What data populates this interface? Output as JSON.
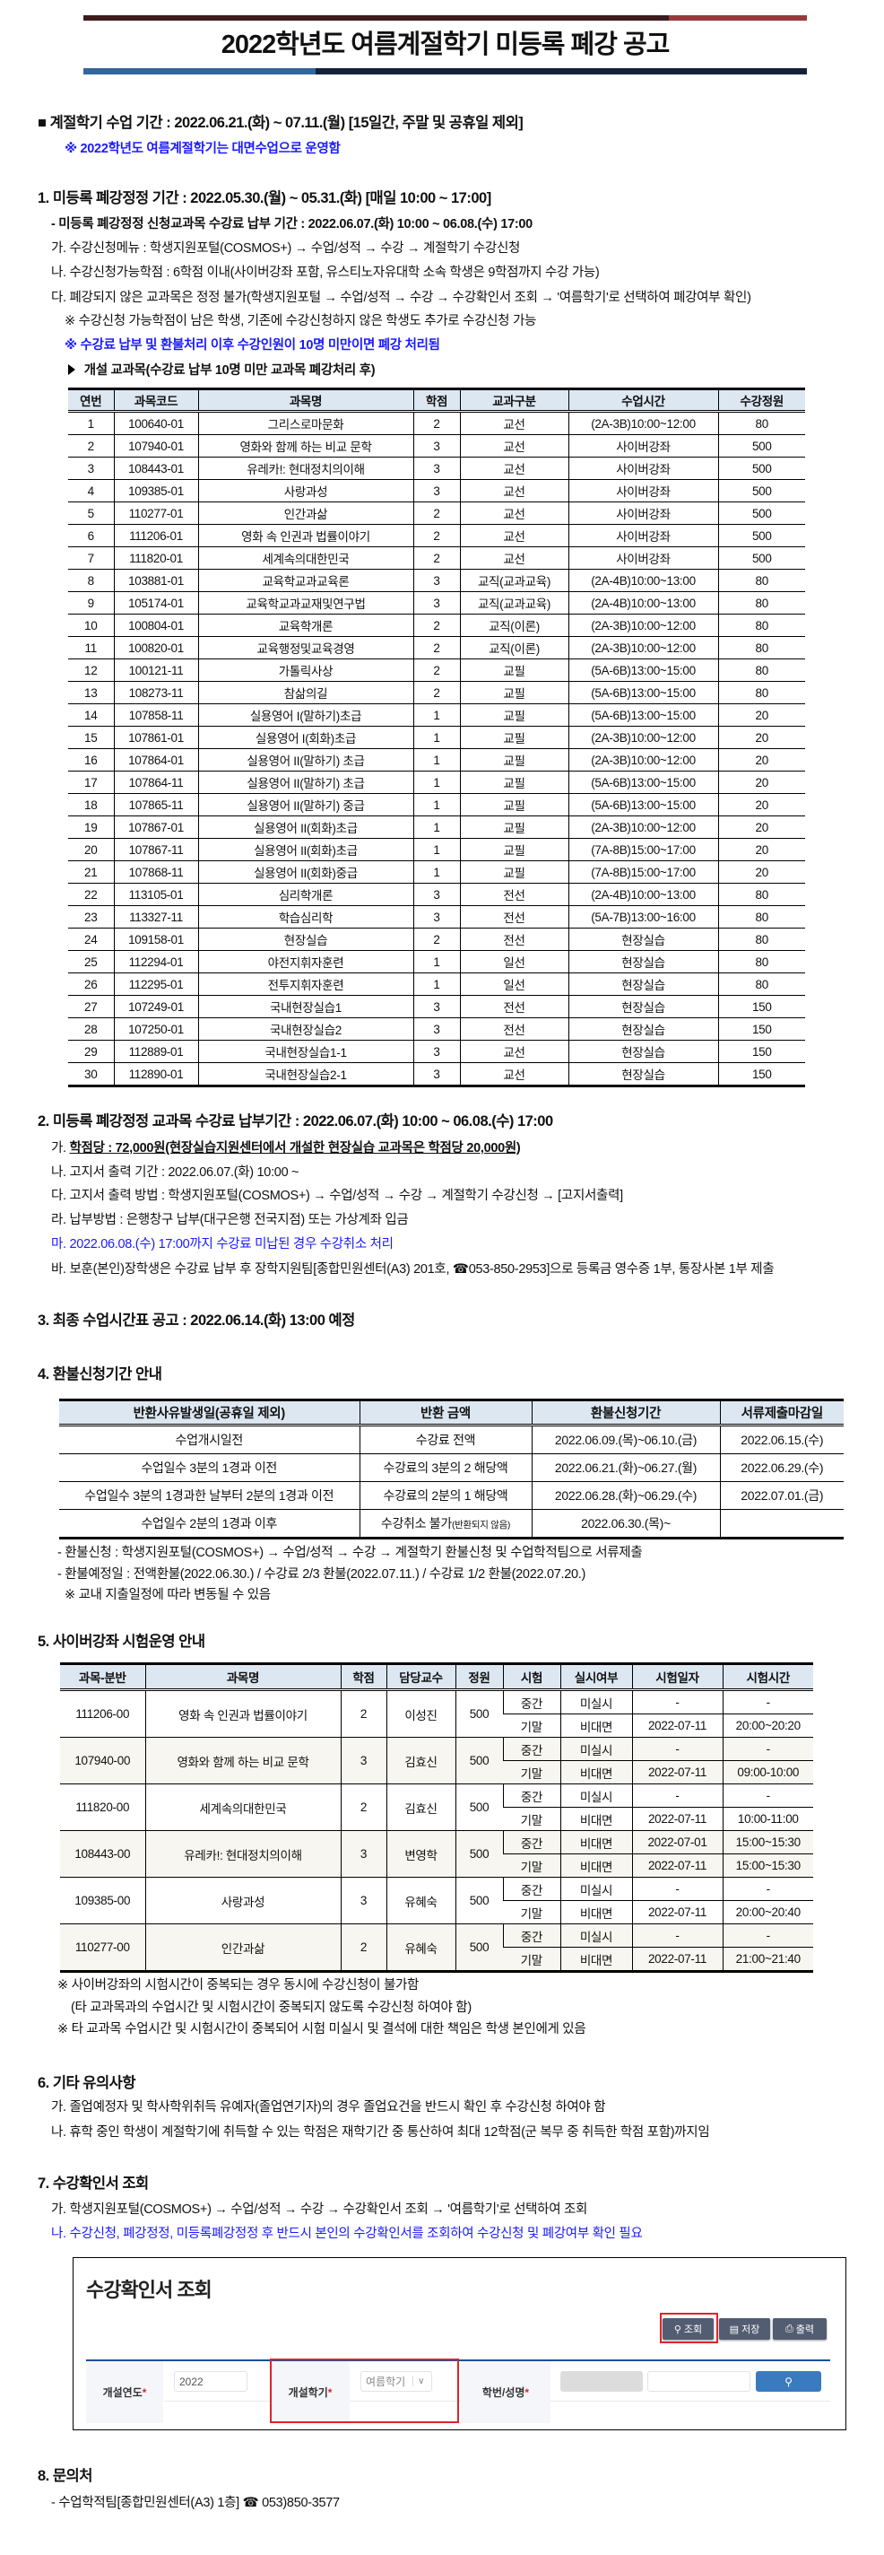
{
  "title": "2022학년도 여름계절학기 미등록 폐강 공고",
  "colors": {
    "bar_top_dark": "#3d1a1c",
    "bar_top_red": "#963a3a",
    "bar_bottom_blue": "#336699",
    "bar_bottom_navy": "#14213a",
    "accent_blue_text": "#1a1aff",
    "table_header": "#dde7f2"
  },
  "period": {
    "bullet": "■",
    "text": "계절학기 수업 기간 : 2022.06.21.(화) ~ 07.11.(월) [15일간, 주말 및 공휴일 제외]",
    "note": "※ 2022학년도 여름계절학기는 대면수업으로 운영함"
  },
  "s1": {
    "heading": "1. 미등록 폐강정정 기간 : 2022.05.30.(월) ~ 05.31.(화) [매일 10:00 ~ 17:00]",
    "sub": "- 미등록 폐강정정 신청교과목 수강료 납부 기간 : 2022.06.07.(화) 10:00 ~ 06.08.(수) 17:00",
    "items": [
      "가. 수강신청메뉴 : 학생지원포털(COSMOS+) → 수업/성적 → 수강 → 계절학기 수강신청",
      "나. 수강신청가능학점 : 6학점 이내(사이버강좌 포함, 유스티노자유대학 소속 학생은 9학점까지 수강 가능)",
      "다. 폐강되지 않은 교과목은 정정 불가(학생지원포털 → 수업/성적 → 수강 → 수강확인서 조회 → '여름학기'로 선택하여 폐강여부 확인)"
    ],
    "note1": "※ 수강신청 가능학점이 남은 학생, 기존에 수강신청하지 않은 학생도 추가로 수강신청 가능",
    "note2": "※ 수강료 납부 및 환불처리 이후 수강인원이 10명 미만이면 폐강 처리됨",
    "caption_icon": "triangle-right-icon",
    "caption": "개설 교과목(수강료 납부 10명 미만 교과목 폐강처리 후)",
    "table": {
      "headers": [
        "연번",
        "과목코드",
        "과목명",
        "학점",
        "교과구분",
        "수업시간",
        "수강정원"
      ],
      "rows": [
        [
          "1",
          "100640-01",
          "그리스로마문화",
          "2",
          "교선",
          "(2A-3B)10:00~12:00",
          "80"
        ],
        [
          "2",
          "107940-01",
          "영화와 함께 하는 비교 문학",
          "3",
          "교선",
          "사이버강좌",
          "500"
        ],
        [
          "3",
          "108443-01",
          "유레카!: 현대정치의이해",
          "3",
          "교선",
          "사이버강좌",
          "500"
        ],
        [
          "4",
          "109385-01",
          "사랑과성",
          "3",
          "교선",
          "사이버강좌",
          "500"
        ],
        [
          "5",
          "110277-01",
          "인간과삶",
          "2",
          "교선",
          "사이버강좌",
          "500"
        ],
        [
          "6",
          "111206-01",
          "영화 속 인권과 법률이야기",
          "2",
          "교선",
          "사이버강좌",
          "500"
        ],
        [
          "7",
          "111820-01",
          "세계속의대한민국",
          "2",
          "교선",
          "사이버강좌",
          "500"
        ],
        [
          "8",
          "103881-01",
          "교육학교과교육론",
          "3",
          "교직(교과교육)",
          "(2A-4B)10:00~13:00",
          "80"
        ],
        [
          "9",
          "105174-01",
          "교육학교과교재및연구법",
          "3",
          "교직(교과교육)",
          "(2A-4B)10:00~13:00",
          "80"
        ],
        [
          "10",
          "100804-01",
          "교육학개론",
          "2",
          "교직(이론)",
          "(2A-3B)10:00~12:00",
          "80"
        ],
        [
          "11",
          "100820-01",
          "교육행정및교육경영",
          "2",
          "교직(이론)",
          "(2A-3B)10:00~12:00",
          "80"
        ],
        [
          "12",
          "100121-11",
          "가톨릭사상",
          "2",
          "교필",
          "(5A-6B)13:00~15:00",
          "80"
        ],
        [
          "13",
          "108273-11",
          "참삶의길",
          "2",
          "교필",
          "(5A-6B)13:00~15:00",
          "80"
        ],
        [
          "14",
          "107858-11",
          "실용영어 I(말하기)초급",
          "1",
          "교필",
          "(5A-6B)13:00~15:00",
          "20"
        ],
        [
          "15",
          "107861-01",
          "실용영어 I(회화)초급",
          "1",
          "교필",
          "(2A-3B)10:00~12:00",
          "20"
        ],
        [
          "16",
          "107864-01",
          "실용영어 II(말하기) 초급",
          "1",
          "교필",
          "(2A-3B)10:00~12:00",
          "20"
        ],
        [
          "17",
          "107864-11",
          "실용영어 II(말하기) 초급",
          "1",
          "교필",
          "(5A-6B)13:00~15:00",
          "20"
        ],
        [
          "18",
          "107865-11",
          "실용영어 II(말하기) 중급",
          "1",
          "교필",
          "(5A-6B)13:00~15:00",
          "20"
        ],
        [
          "19",
          "107867-01",
          "실용영어 II(회화)초급",
          "1",
          "교필",
          "(2A-3B)10:00~12:00",
          "20"
        ],
        [
          "20",
          "107867-11",
          "실용영어 II(회화)초급",
          "1",
          "교필",
          "(7A-8B)15:00~17:00",
          "20"
        ],
        [
          "21",
          "107868-11",
          "실용영어 II(회화)중급",
          "1",
          "교필",
          "(7A-8B)15:00~17:00",
          "20"
        ],
        [
          "22",
          "113105-01",
          "심리학개론",
          "3",
          "전선",
          "(2A-4B)10:00~13:00",
          "80"
        ],
        [
          "23",
          "113327-11",
          "학습심리학",
          "3",
          "전선",
          "(5A-7B)13:00~16:00",
          "80"
        ],
        [
          "24",
          "109158-01",
          "현장실습",
          "2",
          "전선",
          "현장실습",
          "80"
        ],
        [
          "25",
          "112294-01",
          "야전지휘자훈련",
          "1",
          "일선",
          "현장실습",
          "80"
        ],
        [
          "26",
          "112295-01",
          "전투지휘자훈련",
          "1",
          "일선",
          "현장실습",
          "80"
        ],
        [
          "27",
          "107249-01",
          "국내현장실습1",
          "3",
          "전선",
          "현장실습",
          "150"
        ],
        [
          "28",
          "107250-01",
          "국내현장실습2",
          "3",
          "전선",
          "현장실습",
          "150"
        ],
        [
          "29",
          "112889-01",
          "국내현장실습1-1",
          "3",
          "교선",
          "현장실습",
          "150"
        ],
        [
          "30",
          "112890-01",
          "국내현장실습2-1",
          "3",
          "교선",
          "현장실습",
          "150"
        ]
      ]
    }
  },
  "s2": {
    "heading": "2. 미등록 폐강정정 교과목 수강료 납부기간 : 2022.06.07.(화) 10:00 ~ 06.08.(수) 17:00",
    "a_prefix": "가. ",
    "a_emph": "학점당 : 72,000원(현장실습지원센터에서 개설한 현장실습 교과목은 학점당 20,000원)",
    "b": "나. 고지서 출력 기간 : 2022.06.07.(화) 10:00 ~",
    "c": "다. 고지서 출력 방법 : 학생지원포털(COSMOS+) → 수업/성적 → 수강 → 계절학기 수강신청 → [고지서출력]",
    "d": "라. 납부방법 : 은행창구 납부(대구은행 전국지점) 또는 가상계좌 입금",
    "e": "마. 2022.06.08.(수) 17:00까지 수강료 미납된 경우 수강취소 처리",
    "f_before": "바. 보훈(본인)장학생은 수강료 납부 후 장학지원팀[종합민원센터(A3) 201호, ",
    "f_phone_icon": "☎",
    "f_after": "053-850-2953]으로 등록금 영수증 1부, 통장사본 1부 제출"
  },
  "s3": {
    "heading": "3. 최종 수업시간표 공고 : 2022.06.14.(화) 13:00 예정"
  },
  "s4": {
    "heading": "4. 환불신청기간 안내",
    "table": {
      "headers": [
        "반환사유발생일(공휴일 제외)",
        "반환 금액",
        "환불신청기간",
        "서류제출마감일"
      ],
      "rows": [
        [
          "수업개시일전",
          "수강료 전액",
          "2022.06.09.(목)~06.10.(금)",
          "2022.06.15.(수)"
        ],
        [
          "수업일수 3분의 1경과 이전",
          "수강료의 3분의 2 해당액",
          "2022.06.21.(화)~06.27.(월)",
          "2022.06.29.(수)"
        ],
        [
          "수업일수 3분의 1경과한 날부터 2분의 1경과 이전",
          "수강료의 2분의 1 해당액",
          "2022.06.28.(화)~06.29.(수)",
          "2022.07.01.(금)"
        ],
        [
          "수업일수 2분의 1경과 이후",
          "수강취소 불가",
          "2022.06.30.(목)~",
          ""
        ]
      ],
      "last_amount_note": "(반환되지 않음)"
    },
    "notes": [
      "- 환불신청 : 학생지원포털(COSMOS+) → 수업/성적 → 수강 → 계절학기 환불신청 및 수업학적팀으로 서류제출",
      "- 환불예정일 : 전액환불(2022.06.30.) / 수강료 2/3 환불(2022.07.11.) / 수강료 1/2 환불(2022.07.20.)",
      "※ 교내 지출일정에 따라 변동될 수 있음"
    ]
  },
  "s5": {
    "heading": "5. 사이버강좌 시험운영 안내",
    "table": {
      "headers": [
        "과목-분반",
        "과목명",
        "학점",
        "담당교수",
        "정원",
        "시험",
        "실시여부",
        "시험일자",
        "시험시간"
      ],
      "courses": [
        {
          "code": "111206-00",
          "name": "영화 속 인권과 법률이야기",
          "credit": "2",
          "prof": "이성진",
          "cap": "500",
          "exams": [
            [
              "중간",
              "미실시",
              "-",
              "-"
            ],
            [
              "기말",
              "비대면",
              "2022-07-11",
              "20:00~20:20"
            ]
          ]
        },
        {
          "code": "107940-00",
          "name": "영화와 함께 하는 비교 문학",
          "credit": "3",
          "prof": "김효신",
          "cap": "500",
          "exams": [
            [
              "중간",
              "미실시",
              "-",
              "-"
            ],
            [
              "기말",
              "비대면",
              "2022-07-11",
              "09:00-10:00"
            ]
          ]
        },
        {
          "code": "111820-00",
          "name": "세계속의대한민국",
          "credit": "2",
          "prof": "김효신",
          "cap": "500",
          "exams": [
            [
              "중간",
              "미실시",
              "-",
              "-"
            ],
            [
              "기말",
              "비대면",
              "2022-07-11",
              "10:00-11:00"
            ]
          ]
        },
        {
          "code": "108443-00",
          "name": "유레카!: 현대정치의이해",
          "credit": "3",
          "prof": "변영학",
          "cap": "500",
          "exams": [
            [
              "중간",
              "비대면",
              "2022-07-01",
              "15:00~15:30"
            ],
            [
              "기말",
              "비대면",
              "2022-07-11",
              "15:00~15:30"
            ]
          ]
        },
        {
          "code": "109385-00",
          "name": "사랑과성",
          "credit": "3",
          "prof": "유혜숙",
          "cap": "500",
          "exams": [
            [
              "중간",
              "미실시",
              "-",
              "-"
            ],
            [
              "기말",
              "비대면",
              "2022-07-11",
              "20:00~20:40"
            ]
          ]
        },
        {
          "code": "110277-00",
          "name": "인간과삶",
          "credit": "2",
          "prof": "유혜숙",
          "cap": "500",
          "exams": [
            [
              "중간",
              "미실시",
              "-",
              "-"
            ],
            [
              "기말",
              "비대면",
              "2022-07-11",
              "21:00~21:40"
            ]
          ]
        }
      ]
    },
    "notes": [
      "※ 사이버강좌의 시험시간이 중복되는 경우 동시에 수강신청이 불가함",
      "(타 교과목과의 수업시간 및 시험시간이 중복되지 않도록 수강신청 하여야 함)",
      "※ 타 교과목 수업시간 및 시험시간이 중복되어 시험 미실시 및 결석에 대한 책임은 학생 본인에게 있음"
    ]
  },
  "s6": {
    "heading": "6. 기타 유의사항",
    "items": [
      "가. 졸업예정자 및 학사학위취득 유예자(졸업연기자)의 경우 졸업요건을 반드시 확인 후 수강신청 하여야 함",
      "나. 휴학 중인 학생이 계절학기에 취득할 수 있는 학점은 재학기간 중 통산하여 최대 12학점(군 복무 중 취득한 학점 포함)까지임"
    ]
  },
  "s7": {
    "heading": "7. 수강확인서 조회",
    "a": "가. 학생지원포털(COSMOS+) → 수업/성적 → 수강 → 수강확인서 조회 → '여름학기'로 선택하여 조회",
    "b": "나. 수강신청, 폐강정정, 미등록폐강정정 후 반드시 본인의 수강확인서를 조회하여 수강신청 및 폐강여부 확인 필요",
    "screenshot": {
      "title": "수강확인서 조회",
      "buttons": {
        "search": "조회",
        "save": "저장",
        "print": "출력"
      },
      "year_label": "개설연도",
      "year_value": "2022",
      "term_label": "개설학기",
      "term_value": "여름학기",
      "student_label": "학번/성명",
      "required_mark": "*"
    }
  },
  "s8": {
    "heading": "8. 문의처",
    "contact_before": "- 수업학적팀[종합민원센터(A3) 1층] ",
    "phone_icon": "☎",
    "contact_after": " 053)850-3577"
  }
}
